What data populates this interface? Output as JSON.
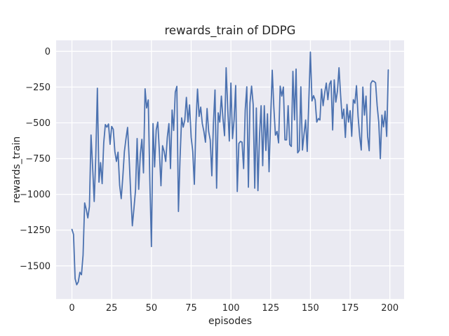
{
  "figure": {
    "kind": "matplotlib-seaborn-darkgrid",
    "background": "#ffffff"
  },
  "chart_data": {
    "type": "line",
    "title": "rewards_train of DDPG",
    "xlabel": "episodes",
    "ylabel": "rewards_train",
    "legend_position": "none",
    "grid": true,
    "axes_bg": "#eaeaf2",
    "grid_color": "#ffffff",
    "line_color": "#4c72b0",
    "text_color": "#262626",
    "xticks": [
      0,
      25,
      50,
      75,
      100,
      125,
      150,
      175,
      200
    ],
    "yticks": [
      0,
      -250,
      -500,
      -750,
      -1000,
      -1250,
      -1500
    ],
    "xlim": [
      -9.95,
      208.95
    ],
    "ylim": [
      -1732,
      77
    ],
    "x_start": 0,
    "x_step": 1,
    "values": [
      -1245,
      -1280,
      -1590,
      -1632,
      -1612,
      -1545,
      -1562,
      -1425,
      -1060,
      -1105,
      -1165,
      -1085,
      -585,
      -805,
      -1050,
      -735,
      -258,
      -915,
      -778,
      -925,
      -640,
      -512,
      -530,
      -508,
      -650,
      -525,
      -545,
      -700,
      -770,
      -705,
      -935,
      -1030,
      -880,
      -700,
      -610,
      -532,
      -750,
      -1000,
      -1220,
      -1100,
      -970,
      -610,
      -965,
      -720,
      -615,
      -850,
      -262,
      -396,
      -340,
      -900,
      -1365,
      -505,
      -808,
      -550,
      -495,
      -700,
      -940,
      -660,
      -700,
      -770,
      -600,
      -505,
      -820,
      -410,
      -553,
      -285,
      -245,
      -1120,
      -750,
      -465,
      -530,
      -480,
      -322,
      -495,
      -375,
      -602,
      -700,
      -930,
      -505,
      -264,
      -455,
      -390,
      -505,
      -560,
      -635,
      -400,
      -560,
      -620,
      -870,
      -505,
      -270,
      -957,
      -430,
      -495,
      -313,
      -470,
      -590,
      -115,
      -400,
      -627,
      -222,
      -610,
      -480,
      -239,
      -980,
      -644,
      -630,
      -635,
      -820,
      -410,
      -248,
      -950,
      -360,
      -243,
      -371,
      -957,
      -396,
      -974,
      -590,
      -380,
      -800,
      -380,
      -693,
      -437,
      -842,
      -470,
      -132,
      -390,
      -586,
      -560,
      -640,
      -243,
      -313,
      -250,
      -619,
      -619,
      -380,
      -652,
      -665,
      -140,
      -479,
      -124,
      -710,
      -693,
      -248,
      -690,
      -580,
      -480,
      -700,
      -350,
      -5,
      -347,
      -310,
      -340,
      -495,
      -470,
      -480,
      -264,
      -380,
      -290,
      -222,
      -338,
      -231,
      -206,
      -550,
      -200,
      -355,
      -280,
      -115,
      -305,
      -470,
      -404,
      -602,
      -371,
      -495,
      -415,
      -594,
      -338,
      -363,
      -240,
      -454,
      -594,
      -690,
      -250,
      -446,
      -313,
      -594,
      -695,
      -225,
      -206,
      -210,
      -220,
      -380,
      -495,
      -750,
      -446,
      -528,
      -418,
      -595,
      -130
    ]
  }
}
